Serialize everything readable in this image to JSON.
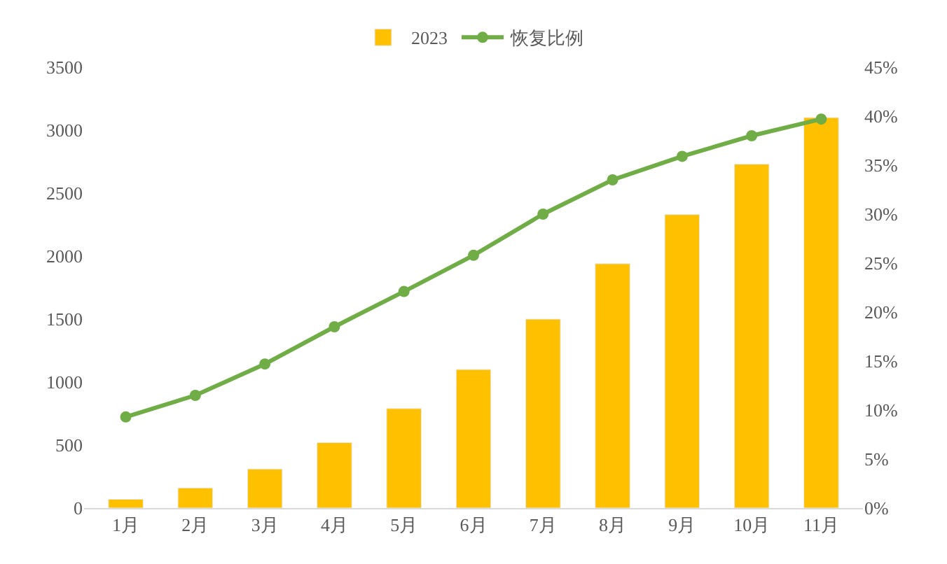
{
  "chart_data": {
    "type": "bar",
    "categories": [
      "1月",
      "2月",
      "3月",
      "4月",
      "5月",
      "6月",
      "7月",
      "8月",
      "9月",
      "10月",
      "11月"
    ],
    "series": [
      {
        "name": "2023",
        "color": "#ffc000",
        "values": [
          70,
          160,
          310,
          520,
          790,
          1100,
          1500,
          1940,
          2330,
          2730,
          3100
        ]
      },
      {
        "name": "恢复比例",
        "type": "line",
        "axis": "y2",
        "color": "#70ad47",
        "values": [
          9.3,
          11.5,
          14.7,
          18.5,
          22.1,
          25.8,
          30.0,
          33.5,
          35.9,
          38.0,
          39.7
        ]
      }
    ],
    "ylim": [
      0,
      3500
    ],
    "yticks": [
      0,
      500,
      1000,
      1500,
      2000,
      2500,
      3000,
      3500
    ],
    "y2lim": [
      0,
      45
    ],
    "y2ticks": [
      {
        "value": 0,
        "label": "0%"
      },
      {
        "value": 5,
        "label": "5%"
      },
      {
        "value": 10,
        "label": "10%"
      },
      {
        "value": 15,
        "label": "15%"
      },
      {
        "value": 20,
        "label": "20%"
      },
      {
        "value": 25,
        "label": "25%"
      },
      {
        "value": 30,
        "label": "30%"
      },
      {
        "value": 35,
        "label": "35%"
      },
      {
        "value": 40,
        "label": "40%"
      },
      {
        "value": 45,
        "label": "45%"
      }
    ],
    "legend": "top",
    "marker": "circle",
    "line_style": "solid"
  }
}
